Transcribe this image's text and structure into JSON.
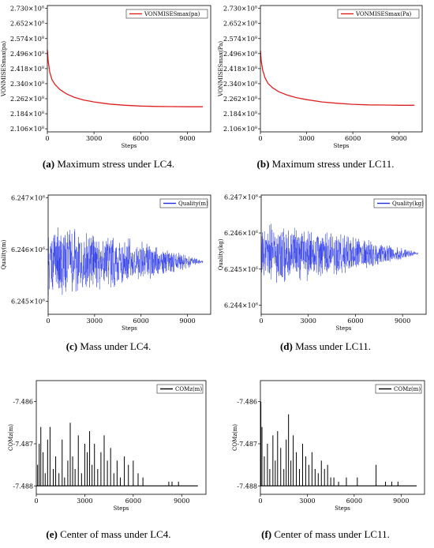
{
  "chart_data": [
    {
      "id": "a",
      "type": "line",
      "caption_letter": "(a)",
      "caption_text": " Maximum stress under LC4.",
      "xlabel": "Steps",
      "ylabel": "VONMISESmax(pa)",
      "xlim": [
        0,
        10500
      ],
      "ylim": [
        2.09,
        2.745
      ],
      "xticks": [
        0,
        3000,
        6000,
        9000
      ],
      "xtick_labels": [
        "0",
        "3000",
        "6000",
        "9000"
      ],
      "yticks": [
        2.106,
        2.184,
        2.262,
        2.34,
        2.418,
        2.496,
        2.574,
        2.652,
        2.73
      ],
      "ytick_mantissa": [
        "2.106",
        "2.184",
        "2.262",
        "2.340",
        "2.418",
        "2.496",
        "2.574",
        "2.652",
        "2.730"
      ],
      "ytick_base": "×10",
      "ytick_exp": "8",
      "series": [
        {
          "name": "VONMISESmax(pa)",
          "color": "#e02020",
          "x": [
            0,
            50,
            150,
            300,
            500,
            800,
            1200,
            1700,
            2300,
            3000,
            4000,
            5000,
            6000,
            7000,
            8000,
            9000,
            10000
          ],
          "y": [
            2.515,
            2.46,
            2.4,
            2.36,
            2.335,
            2.31,
            2.288,
            2.27,
            2.256,
            2.245,
            2.234,
            2.228,
            2.224,
            2.222,
            2.221,
            2.22,
            2.22
          ]
        }
      ],
      "legend": "top-right"
    },
    {
      "id": "b",
      "type": "line",
      "caption_letter": "(b)",
      "caption_text": " Maximum stress under LC11.",
      "xlabel": "Steps",
      "ylabel": "VONMISESmax(Pa)",
      "xlim": [
        0,
        10500
      ],
      "ylim": [
        2.09,
        2.745
      ],
      "xticks": [
        0,
        3000,
        6000,
        9000
      ],
      "xtick_labels": [
        "0",
        "3000",
        "6000",
        "9000"
      ],
      "yticks": [
        2.106,
        2.184,
        2.262,
        2.34,
        2.418,
        2.496,
        2.574,
        2.652,
        2.73
      ],
      "ytick_mantissa": [
        "2.106",
        "2.184",
        "2.262",
        "2.340",
        "2.418",
        "2.496",
        "2.574",
        "2.652",
        "2.730"
      ],
      "ytick_base": "×10",
      "ytick_exp": "8",
      "series": [
        {
          "name": "VONMISESmax(Pa)",
          "color": "#e02020",
          "x": [
            0,
            50,
            150,
            300,
            500,
            800,
            1200,
            1700,
            2300,
            3000,
            4000,
            5000,
            6000,
            7000,
            8000,
            9000,
            10000
          ],
          "y": [
            2.51,
            2.46,
            2.41,
            2.37,
            2.34,
            2.318,
            2.298,
            2.282,
            2.268,
            2.257,
            2.245,
            2.238,
            2.233,
            2.23,
            2.229,
            2.228,
            2.228
          ]
        }
      ],
      "legend": "top-right"
    },
    {
      "id": "c",
      "type": "line",
      "caption_letter": "(c)",
      "caption_text": " Mass under LC4.",
      "xlabel": "Steps",
      "ylabel": "Quality(m)",
      "xlim": [
        0,
        10500
      ],
      "ylim": [
        6.24475,
        6.24705
      ],
      "xticks": [
        0,
        3000,
        6000,
        9000
      ],
      "xtick_labels": [
        "0",
        "3000",
        "6000",
        "9000"
      ],
      "yticks": [
        6.245,
        6.246,
        6.247
      ],
      "ytick_mantissa": [
        "6.245",
        "6.246",
        "6.247"
      ],
      "ytick_base": "×10",
      "ytick_exp": "6",
      "series": [
        {
          "name": "Quality(m)",
          "color": "#1f2ee6",
          "center": 6.24577,
          "amplitude_start": 0.00071,
          "amplitude_end": 3e-05,
          "steps": 10000
        }
      ],
      "legend": "top-right"
    },
    {
      "id": "d",
      "type": "line",
      "caption_letter": "(d)",
      "caption_text": " Mass under LC11.",
      "xlabel": "Steps",
      "ylabel": "Quality(kg)",
      "xlim": [
        0,
        10500
      ],
      "ylim": [
        6.24375,
        6.24705
      ],
      "xticks": [
        0,
        3000,
        6000,
        9000
      ],
      "xtick_labels": [
        "0",
        "3000",
        "6000",
        "9000"
      ],
      "yticks": [
        6.244,
        6.245,
        6.246,
        6.247
      ],
      "ytick_mantissa": [
        "6.244",
        "6.245",
        "6.246",
        "6.247"
      ],
      "ytick_base": "×10",
      "ytick_exp": "6",
      "series": [
        {
          "name": "Quality(kg)",
          "color": "#1f2ee6",
          "center": 6.24542,
          "amplitude_start": 0.00088,
          "amplitude_end": 4e-05,
          "steps": 10000
        }
      ],
      "legend": "top-right"
    },
    {
      "id": "e",
      "type": "line",
      "caption_letter": "(e)",
      "caption_text": " Center of mass under LC4.",
      "xlabel": "Steps",
      "ylabel": "COMz(m)",
      "xlim": [
        0,
        10500
      ],
      "ylim": [
        -7.4882,
        -7.4855
      ],
      "xticks": [
        0,
        3000,
        6000,
        9000
      ],
      "xtick_labels": [
        "0",
        "3000",
        "6000",
        "9000"
      ],
      "yticks": [
        -7.488,
        -7.487,
        -7.486
      ],
      "ytick_labels": [
        "-7.488",
        "-7.487",
        "-7.486"
      ],
      "series": [
        {
          "name": "COMz(m)",
          "color": "#000000",
          "baseline": -7.488,
          "spikes": [
            [
              80,
              -7.4875
            ],
            [
              180,
              -7.487
            ],
            [
              280,
              -7.4866
            ],
            [
              420,
              -7.4872
            ],
            [
              550,
              -7.4877
            ],
            [
              700,
              -7.4869
            ],
            [
              850,
              -7.4866
            ],
            [
              1050,
              -7.4876
            ],
            [
              1200,
              -7.4873
            ],
            [
              1400,
              -7.4877
            ],
            [
              1600,
              -7.4869
            ],
            [
              1750,
              -7.4878
            ],
            [
              1950,
              -7.4874
            ],
            [
              2100,
              -7.4865
            ],
            [
              2250,
              -7.4873
            ],
            [
              2400,
              -7.4876
            ],
            [
              2600,
              -7.4868
            ],
            [
              2800,
              -7.4877
            ],
            [
              3000,
              -7.487
            ],
            [
              3150,
              -7.4872
            ],
            [
              3300,
              -7.4867
            ],
            [
              3450,
              -7.4875
            ],
            [
              3600,
              -7.487
            ],
            [
              3800,
              -7.4876
            ],
            [
              4000,
              -7.4872
            ],
            [
              4200,
              -7.4868
            ],
            [
              4400,
              -7.4874
            ],
            [
              4600,
              -7.4871
            ],
            [
              4800,
              -7.4877
            ],
            [
              5000,
              -7.4874
            ],
            [
              5200,
              -7.4878
            ],
            [
              5450,
              -7.4873
            ],
            [
              5700,
              -7.4875
            ],
            [
              6000,
              -7.4874
            ],
            [
              6300,
              -7.4877
            ],
            [
              6600,
              -7.4878
            ],
            [
              8200,
              -7.4879
            ],
            [
              8400,
              -7.4879
            ],
            [
              8800,
              -7.4879
            ]
          ]
        }
      ],
      "legend": "top-right"
    },
    {
      "id": "f",
      "type": "line",
      "caption_letter": "(f)",
      "caption_text": " Center of mass under LC11.",
      "xlabel": "Steps",
      "ylabel": "COMz(m)",
      "xlim": [
        0,
        10500
      ],
      "ylim": [
        -7.4882,
        -7.4855
      ],
      "xticks": [
        0,
        3000,
        6000,
        9000
      ],
      "xtick_labels": [
        "0",
        "3000",
        "6000",
        "9000"
      ],
      "yticks": [
        -7.488,
        -7.487,
        -7.486
      ],
      "ytick_labels": [
        "-7.488",
        "-7.487",
        "-7.486"
      ],
      "series": [
        {
          "name": "COMz(m)",
          "color": "#000000",
          "baseline": -7.488,
          "spikes": [
            [
              30,
              -7.486
            ],
            [
              100,
              -7.4866
            ],
            [
              250,
              -7.4873
            ],
            [
              450,
              -7.487
            ],
            [
              600,
              -7.4876
            ],
            [
              800,
              -7.4868
            ],
            [
              950,
              -7.4874
            ],
            [
              1100,
              -7.4867
            ],
            [
              1300,
              -7.4871
            ],
            [
              1500,
              -7.4876
            ],
            [
              1650,
              -7.4869
            ],
            [
              1800,
              -7.4863
            ],
            [
              1950,
              -7.4874
            ],
            [
              2100,
              -7.4868
            ],
            [
              2300,
              -7.4872
            ],
            [
              2500,
              -7.4876
            ],
            [
              2700,
              -7.487
            ],
            [
              2900,
              -7.4873
            ],
            [
              3100,
              -7.4875
            ],
            [
              3300,
              -7.4872
            ],
            [
              3500,
              -7.4876
            ],
            [
              3700,
              -7.4877
            ],
            [
              3900,
              -7.4874
            ],
            [
              4100,
              -7.4876
            ],
            [
              4300,
              -7.4875
            ],
            [
              4500,
              -7.4878
            ],
            [
              4700,
              -7.4878
            ],
            [
              5000,
              -7.4879
            ],
            [
              5500,
              -7.4878
            ],
            [
              6200,
              -7.4878
            ],
            [
              7400,
              -7.4875
            ],
            [
              8000,
              -7.4879
            ],
            [
              8400,
              -7.4879
            ],
            [
              8800,
              -7.4879
            ]
          ]
        }
      ],
      "legend": "top-right"
    }
  ]
}
